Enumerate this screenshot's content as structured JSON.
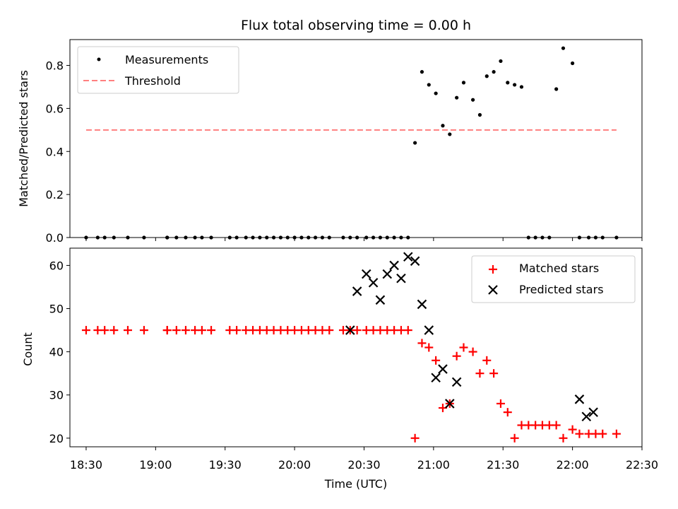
{
  "chart_data": [
    {
      "type": "scatter",
      "title": "Flux total observing time = 0.00 h",
      "xlabel": "",
      "ylabel": "Matched/Predicted stars",
      "ylim": [
        0,
        0.92
      ],
      "yticks": [
        "0.0",
        "0.2",
        "0.4",
        "0.6",
        "0.8"
      ],
      "legend_position": "top-left",
      "series": [
        {
          "name": "Measurements",
          "marker": "dot",
          "color": "#000000",
          "x": [
            "18:30",
            "18:35",
            "18:38",
            "18:42",
            "18:48",
            "18:55",
            "19:05",
            "19:05",
            "19:09",
            "19:13",
            "19:17",
            "19:20",
            "19:24",
            "19:32",
            "19:35",
            "19:39",
            "19:42",
            "19:45",
            "19:48",
            "19:51",
            "19:54",
            "19:57",
            "20:00",
            "20:03",
            "20:06",
            "20:09",
            "20:12",
            "20:15",
            "20:21",
            "20:24",
            "20:27",
            "20:31",
            "20:34",
            "20:37",
            "20:40",
            "20:43",
            "20:46",
            "20:49",
            "20:52",
            "20:55",
            "20:58",
            "21:01",
            "21:04",
            "21:07",
            "21:10",
            "21:13",
            "21:17",
            "21:20",
            "21:23",
            "21:26",
            "21:29",
            "21:32",
            "21:35",
            "21:38",
            "21:41",
            "21:44",
            "21:47",
            "21:50",
            "21:53",
            "21:56",
            "22:00",
            "22:03",
            "22:07",
            "22:10",
            "22:13",
            "22:19"
          ],
          "y": [
            0,
            0,
            0,
            0,
            0,
            0,
            0,
            0,
            0,
            0,
            0,
            0,
            0,
            0,
            0,
            0,
            0,
            0,
            0,
            0,
            0,
            0,
            0,
            0,
            0,
            0,
            0,
            0,
            0,
            0,
            0,
            0,
            0,
            0,
            0,
            0,
            0,
            0,
            0.44,
            0.77,
            0.71,
            0.67,
            0.52,
            0.48,
            0.65,
            0.72,
            0.64,
            0.57,
            0.75,
            0.77,
            0.82,
            0.72,
            0.71,
            0.7,
            0,
            0,
            0,
            0,
            0.69,
            0.88,
            0.81,
            0,
            0,
            0,
            0,
            0
          ]
        },
        {
          "name": "Threshold",
          "line": "dashed",
          "color": "#ff7f7f",
          "x": [
            "18:30",
            "22:19"
          ],
          "y": [
            0.5,
            0.5
          ]
        }
      ]
    },
    {
      "type": "scatter",
      "title": "",
      "xlabel": "Time (UTC)",
      "ylabel": "Count",
      "ylim": [
        18,
        64
      ],
      "yticks": [
        "20",
        "30",
        "40",
        "50",
        "60"
      ],
      "xticks": [
        "18:30",
        "19:00",
        "19:30",
        "20:00",
        "20:30",
        "21:00",
        "21:30",
        "22:00",
        "22:30"
      ],
      "xlim": [
        "18:23",
        "22:30"
      ],
      "legend_position": "top-right",
      "series": [
        {
          "name": "Matched stars",
          "marker": "+",
          "color": "#ff0000",
          "x": [
            "18:30",
            "18:35",
            "18:38",
            "18:42",
            "18:48",
            "18:55",
            "19:05",
            "19:05",
            "19:09",
            "19:13",
            "19:17",
            "19:20",
            "19:24",
            "19:32",
            "19:35",
            "19:39",
            "19:42",
            "19:45",
            "19:48",
            "19:51",
            "19:54",
            "19:57",
            "20:00",
            "20:03",
            "20:06",
            "20:09",
            "20:12",
            "20:15",
            "20:21",
            "20:24",
            "20:27",
            "20:31",
            "20:34",
            "20:37",
            "20:40",
            "20:43",
            "20:46",
            "20:49",
            "20:52",
            "20:55",
            "20:58",
            "21:01",
            "21:04",
            "21:07",
            "21:10",
            "21:13",
            "21:17",
            "21:20",
            "21:23",
            "21:26",
            "21:29",
            "21:32",
            "21:35",
            "21:38",
            "21:41",
            "21:44",
            "21:47",
            "21:50",
            "21:53",
            "21:56",
            "22:00",
            "22:03",
            "22:07",
            "22:10",
            "22:13",
            "22:19"
          ],
          "y": [
            45,
            45,
            45,
            45,
            45,
            45,
            45,
            45,
            45,
            45,
            45,
            45,
            45,
            45,
            45,
            45,
            45,
            45,
            45,
            45,
            45,
            45,
            45,
            45,
            45,
            45,
            45,
            45,
            45,
            45,
            45,
            45,
            45,
            45,
            45,
            45,
            45,
            45,
            20,
            42,
            41,
            38,
            27,
            28,
            39,
            41,
            40,
            35,
            38,
            35,
            28,
            26,
            20,
            23,
            23,
            23,
            23,
            23,
            23,
            20,
            22,
            21,
            21,
            21,
            21,
            21
          ]
        },
        {
          "name": "Predicted stars",
          "marker": "x",
          "color": "#000000",
          "x": [
            "20:24",
            "20:27",
            "20:31",
            "20:34",
            "20:37",
            "20:40",
            "20:43",
            "20:46",
            "20:49",
            "20:52",
            "20:55",
            "20:58",
            "21:01",
            "21:04",
            "21:07",
            "21:10",
            "22:03",
            "22:06",
            "22:09"
          ],
          "y": [
            45,
            54,
            58,
            56,
            52,
            58,
            60,
            57,
            62,
            61,
            51,
            45,
            34,
            36,
            28,
            33,
            29,
            25,
            26
          ]
        }
      ]
    }
  ]
}
